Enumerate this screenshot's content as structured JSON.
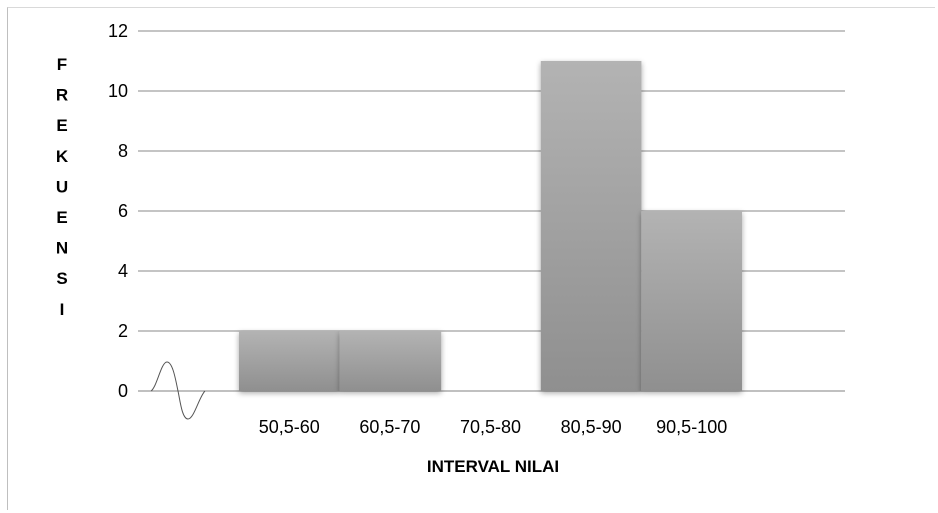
{
  "chart_data": {
    "type": "bar",
    "title": "",
    "xlabel": "INTERVAL NILAI",
    "ylabel": "FREKUENSI",
    "categories": [
      "50,5-60",
      "60,5-70",
      "70,5-80",
      "80,5-90",
      "90,5-100"
    ],
    "values": [
      2,
      2,
      0,
      11,
      6
    ],
    "ylim": [
      0,
      12
    ],
    "yticks": [
      0,
      2,
      4,
      6,
      8,
      10,
      12
    ],
    "grid": true,
    "legend": "none",
    "bar_color": "#9e9e9e",
    "bar_gap": "none",
    "axis_break_symbol": "wavy-line-icon"
  }
}
